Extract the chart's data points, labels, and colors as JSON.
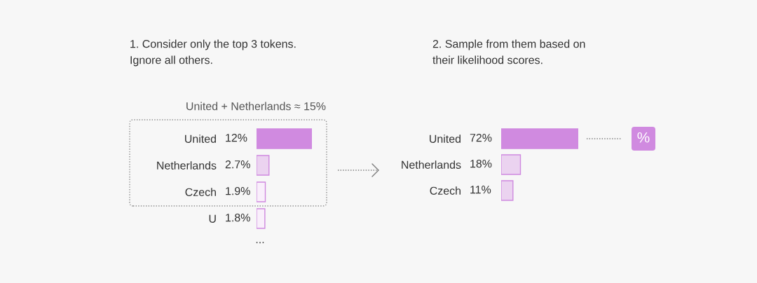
{
  "chart_data": [
    {
      "type": "bar",
      "orientation": "horizontal",
      "title": "1. Consider only the top 3 tokens.\nIgnore all others.",
      "categories": [
        "United",
        "Netherlands",
        "Czech",
        "U"
      ],
      "values": [
        12,
        2.7,
        1.9,
        1.8
      ],
      "colors": [
        "#d08ae0",
        "#ebd3f0",
        "#f9effb",
        "#f9effb"
      ],
      "value_labels": [
        "12%",
        "2.7%",
        "1.9%",
        "1.8%"
      ],
      "annotations": [
        "United + Netherlands ≈ 15%",
        "..."
      ],
      "tick_labels": "y"
    },
    {
      "type": "bar",
      "orientation": "horizontal",
      "title": "2. Sample from them based on\ntheir likelihood scores.",
      "categories": [
        "United",
        "Netherlands",
        "Czech"
      ],
      "values": [
        72,
        18,
        11
      ],
      "colors": [
        "#d08ae0",
        "#ebd3f0",
        "#ebd3f0"
      ],
      "value_labels": [
        "72%",
        "18%",
        "11%"
      ],
      "annotations": [
        "%"
      ],
      "tick_labels": "y"
    }
  ]
}
